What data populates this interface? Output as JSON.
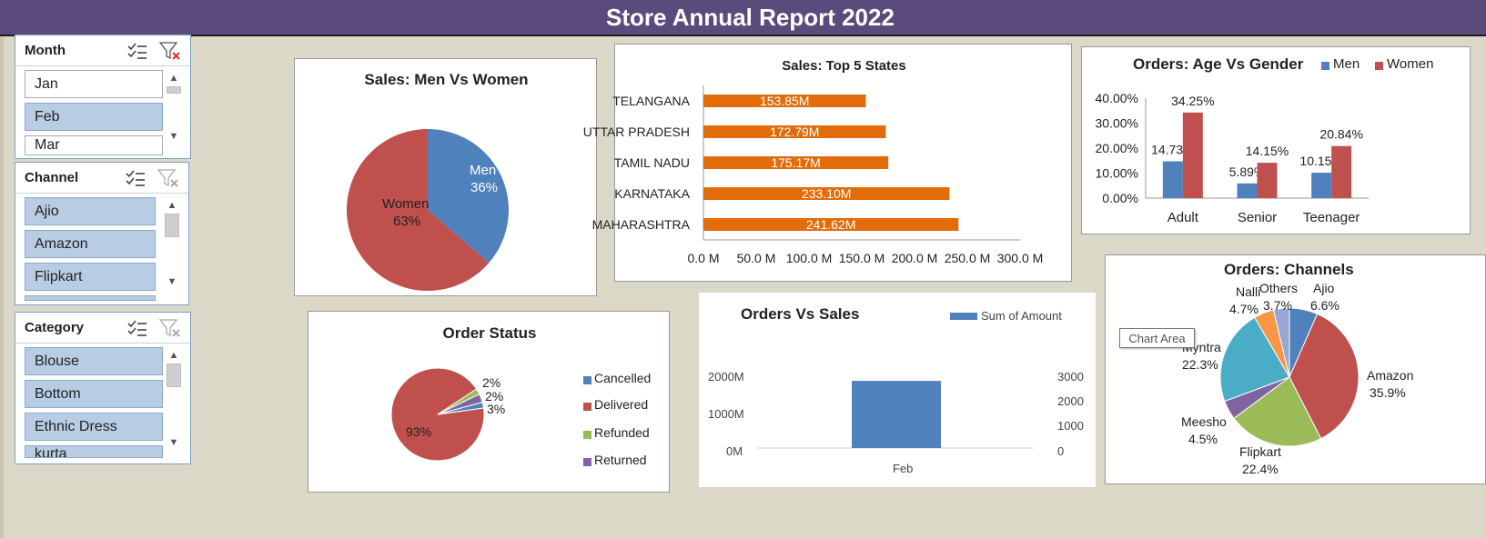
{
  "title": "Store Annual Report 2022",
  "colors": {
    "header": "#5b4a7c",
    "blue": "#4f81bd",
    "red": "#c0504d",
    "green": "#9bbb59",
    "purple": "#8064a2",
    "aqua": "#4bacc6",
    "orange": "#f79646",
    "lavender": "#95a9d4",
    "bar": "#e36c0a"
  },
  "slicers": {
    "month": {
      "title": "Month",
      "items": [
        {
          "label": "Jan",
          "selected": false
        },
        {
          "label": "Feb",
          "selected": true
        },
        {
          "label": "Mar",
          "selected": false
        }
      ],
      "icons": [
        "multi-select-icon",
        "clear-filter-icon"
      ]
    },
    "channel": {
      "title": "Channel",
      "items": [
        {
          "label": "Ajio",
          "selected": true
        },
        {
          "label": "Amazon",
          "selected": true
        },
        {
          "label": "Flipkart",
          "selected": true
        },
        {
          "label": "",
          "selected": true
        }
      ],
      "icons": [
        "multi-select-icon",
        "clear-filter-icon"
      ]
    },
    "category": {
      "title": "Category",
      "items": [
        {
          "label": "Blouse",
          "selected": true
        },
        {
          "label": "Bottom",
          "selected": true
        },
        {
          "label": "Ethnic Dress",
          "selected": true
        },
        {
          "label": "kurta",
          "selected": true
        }
      ],
      "icons": [
        "multi-select-icon",
        "clear-filter-icon"
      ]
    }
  },
  "charts": {
    "men_women": {
      "title": "Sales: Men Vs Women",
      "labels": {
        "men": "Men",
        "men_pct": "36%",
        "women": "Women",
        "women_pct": "63%"
      }
    },
    "top_states": {
      "title": "Sales: Top 5 States",
      "ticks": [
        "0.0 M",
        "50.0 M",
        "100.0 M",
        "150.0 M",
        "200.0 M",
        "250.0 M",
        "300.0 M"
      ]
    },
    "age_gender": {
      "title": "Orders: Age Vs Gender",
      "legend": [
        "Men",
        "Women"
      ],
      "yticks": [
        "40.00%",
        "30.00%",
        "20.00%",
        "10.00%",
        "0.00%"
      ],
      "data_labels": [
        "14.73%",
        "34.25%",
        "5.89%",
        "14.15%",
        "10.15%",
        "20.84%"
      ]
    },
    "order_status": {
      "title": "Order Status",
      "legend": [
        "Cancelled",
        "Delivered",
        "Refunded",
        "Returned"
      ],
      "data_labels": [
        "93%",
        "2%",
        "2%",
        "3%"
      ]
    },
    "orders_sales": {
      "title": "Orders Vs Sales",
      "legend": "Sum of Amount",
      "left_ticks": [
        "2000M",
        "1000M",
        "0M"
      ],
      "right_ticks": [
        "3000",
        "2000",
        "1000",
        "0"
      ],
      "category": "Feb"
    },
    "channels": {
      "title": "Orders: Channels",
      "labels": [
        {
          "name": "Ajio",
          "pct": "6.6%"
        },
        {
          "name": "Amazon",
          "pct": "35.9%"
        },
        {
          "name": "Flipkart",
          "pct": "22.4%"
        },
        {
          "name": "Meesho",
          "pct": "4.5%"
        },
        {
          "name": "Myntra",
          "pct": "22.3%"
        },
        {
          "name": "Nalli",
          "pct": "4.7%"
        },
        {
          "name": "Others",
          "pct": "3.7%"
        }
      ],
      "tooltip": "Chart Area"
    }
  },
  "chart_data": [
    {
      "type": "pie",
      "title": "Sales: Men Vs Women",
      "categories": [
        "Men",
        "Women"
      ],
      "values": [
        36,
        63
      ]
    },
    {
      "type": "bar",
      "orientation": "horizontal",
      "title": "Sales: Top 5 States",
      "categories": [
        "TELANGANA",
        "UTTAR PRADESH",
        "TAMIL NADU",
        "KARNATAKA",
        "MAHARASHTRA"
      ],
      "values": [
        153.85,
        172.79,
        175.17,
        233.1,
        241.62
      ],
      "value_labels": [
        "153.85M",
        "172.79M",
        "175.17M",
        "233.10M",
        "241.62M"
      ],
      "xlim": [
        0,
        300
      ],
      "unit": "M"
    },
    {
      "type": "bar",
      "title": "Orders: Age Vs Gender",
      "categories": [
        "Adult",
        "Senior",
        "Teenager"
      ],
      "series": [
        {
          "name": "Men",
          "values": [
            14.73,
            5.89,
            10.15
          ]
        },
        {
          "name": "Women",
          "values": [
            34.25,
            14.15,
            20.84
          ]
        }
      ],
      "ylim": [
        0,
        40
      ],
      "legend": "top-right"
    },
    {
      "type": "pie",
      "title": "Order Status",
      "categories": [
        "Cancelled",
        "Delivered",
        "Refunded",
        "Returned"
      ],
      "values": [
        2,
        93,
        2,
        3
      ],
      "legend": "right"
    },
    {
      "type": "bar",
      "title": "Orders Vs Sales",
      "categories": [
        "Feb"
      ],
      "series": [
        {
          "name": "Sum of Amount",
          "values": [
            1870
          ]
        }
      ],
      "ylim": [
        0,
        2000
      ],
      "y2lim": [
        0,
        3000
      ],
      "legend": "top-right"
    },
    {
      "type": "pie",
      "title": "Orders: Channels",
      "categories": [
        "Ajio",
        "Amazon",
        "Flipkart",
        "Meesho",
        "Myntra",
        "Nalli",
        "Others"
      ],
      "values": [
        6.6,
        35.9,
        22.4,
        4.5,
        22.3,
        4.7,
        3.7
      ]
    }
  ]
}
